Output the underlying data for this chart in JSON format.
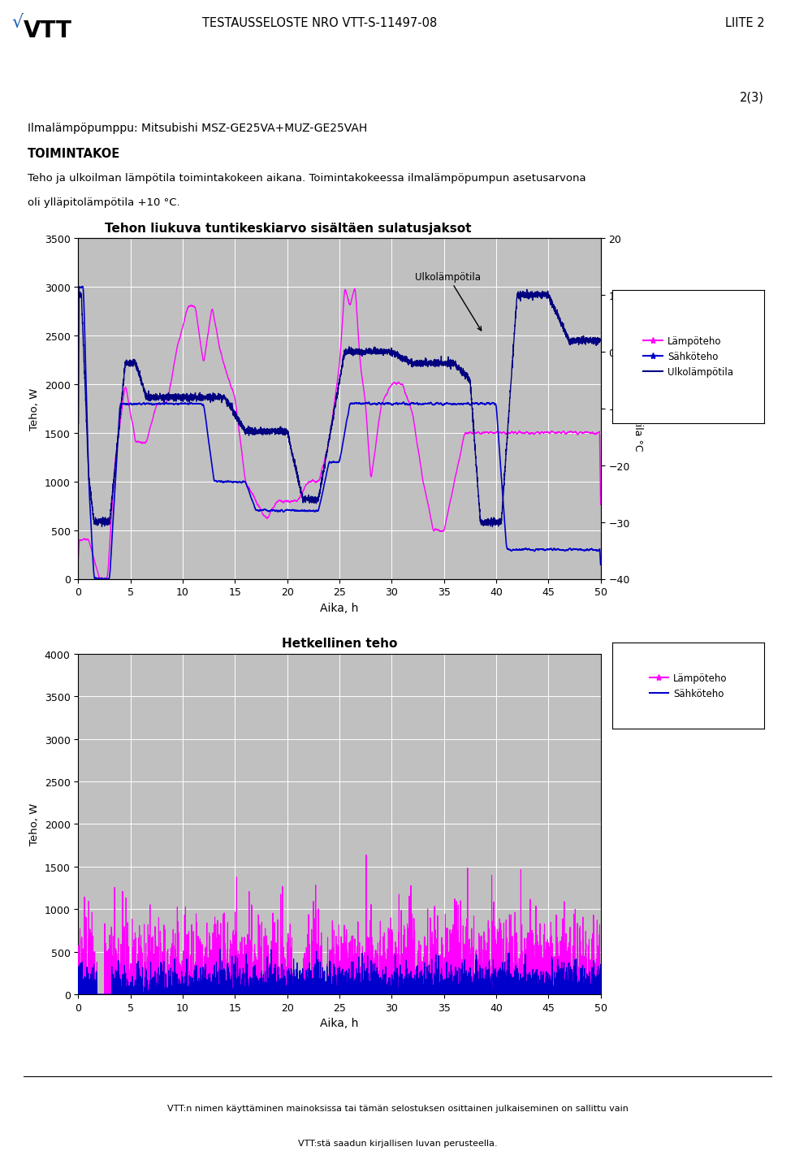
{
  "title_header": "TESTAUSSELOSTE NRO VTT-S-11497-08",
  "liite": "LIITE 2",
  "page": "2(3)",
  "doc_title1_display": "Ilmalämpöpumppu: Mitsubishi MSZ-GE25VA+MUZ-GE25VAH",
  "doc_title2": "TOIMINTAKOE",
  "doc_text1": "Teho ja ulkoilman lämpötila toimintakokeen aikana. Toimintakokeessa ilmalämpöpumpun asetusarvona",
  "doc_text2": "oli ylläpitolämpötila +10 °C.",
  "chart1_title": "Tehon liukuva tuntikeskiarvo sisältäen sulatusjaksot",
  "chart2_title": "Hetkellinen teho",
  "xlabel": "Aika, h",
  "ylabel": "Teho, W",
  "ylabel2": "Ulkolämpötila °C",
  "xlim": [
    0,
    50
  ],
  "chart1_ylim": [
    0,
    3500
  ],
  "chart1_y2lim": [
    -40,
    20
  ],
  "chart2_ylim": [
    0,
    4000
  ],
  "chart1_yticks": [
    0,
    500,
    1000,
    1500,
    2000,
    2500,
    3000,
    3500
  ],
  "chart1_y2ticks": [
    -40,
    -30,
    -20,
    -10,
    0,
    10,
    20
  ],
  "chart2_yticks": [
    0,
    500,
    1000,
    1500,
    2000,
    2500,
    3000,
    3500,
    4000
  ],
  "xticks": [
    0,
    5,
    10,
    15,
    20,
    25,
    30,
    35,
    40,
    45,
    50
  ],
  "legend1_entries": [
    "Lämpöteho",
    "Sähköteho",
    "Ulkolämpötila"
  ],
  "legend2_entries": [
    "Lämpöteho",
    "Sähköteho"
  ],
  "color_lampoteho": "#FF00FF",
  "color_sahkoteho": "#0000CD",
  "color_ulkolampotila": "#000080",
  "bg_color": "#C0C0C0",
  "footer_text1": "VTT:n nimen käyttäminen mainoksissa tai tämän selostuksen osittainen julkaiseminen on sallittu vain",
  "footer_text2": "VTT:stä saadun kirjallisen luvan perusteella."
}
